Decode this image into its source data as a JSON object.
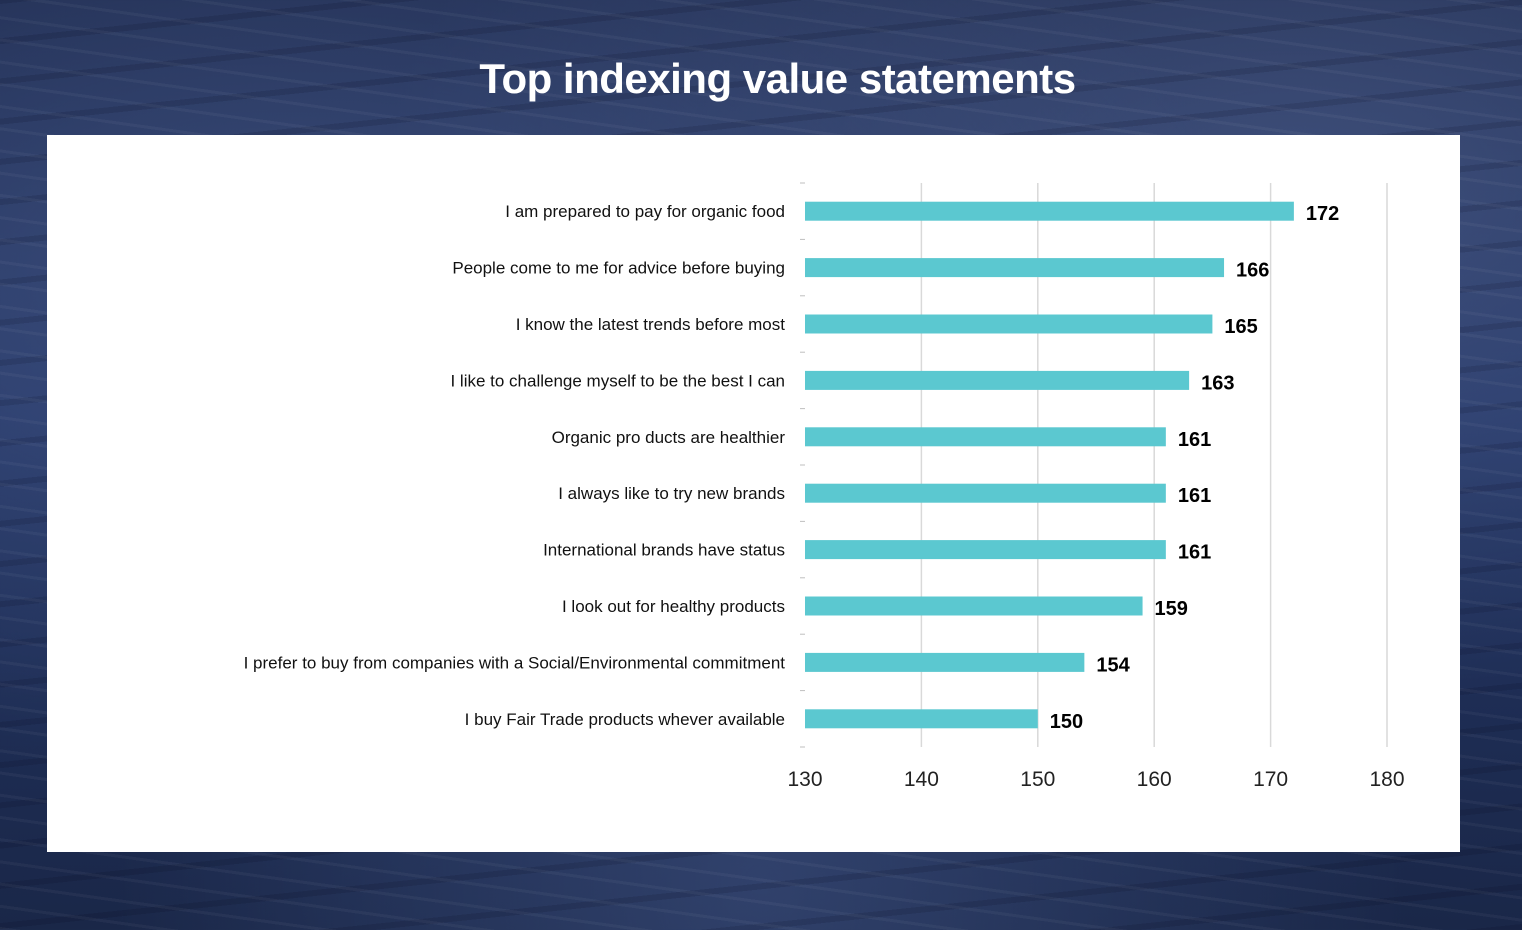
{
  "title": "Top indexing value statements",
  "chart_data": {
    "type": "bar",
    "orientation": "horizontal",
    "categories": [
      "I am prepared  to pay for organic  food",
      "People  come  to me for advice  before buying",
      "I know  the  latest  trends  before  most",
      "I like to challenge  myself  to be the  best  I can",
      "Organic  pro ducts are healthier",
      "I  always  like  to try new brands",
      "International brands  have status",
      "I look  out for healthy  products",
      "I prefer to buy from companies with a Social/Environmental commitment",
      "I buy Fair Trade products whever available"
    ],
    "values": [
      172,
      166,
      165,
      163,
      161,
      161,
      161,
      159,
      154,
      150
    ],
    "xlim": [
      130,
      180
    ],
    "xticks": [
      "130",
      "140",
      "150",
      "160",
      "170",
      "180"
    ],
    "bar_color": "#5bc8d0",
    "grid": true
  }
}
